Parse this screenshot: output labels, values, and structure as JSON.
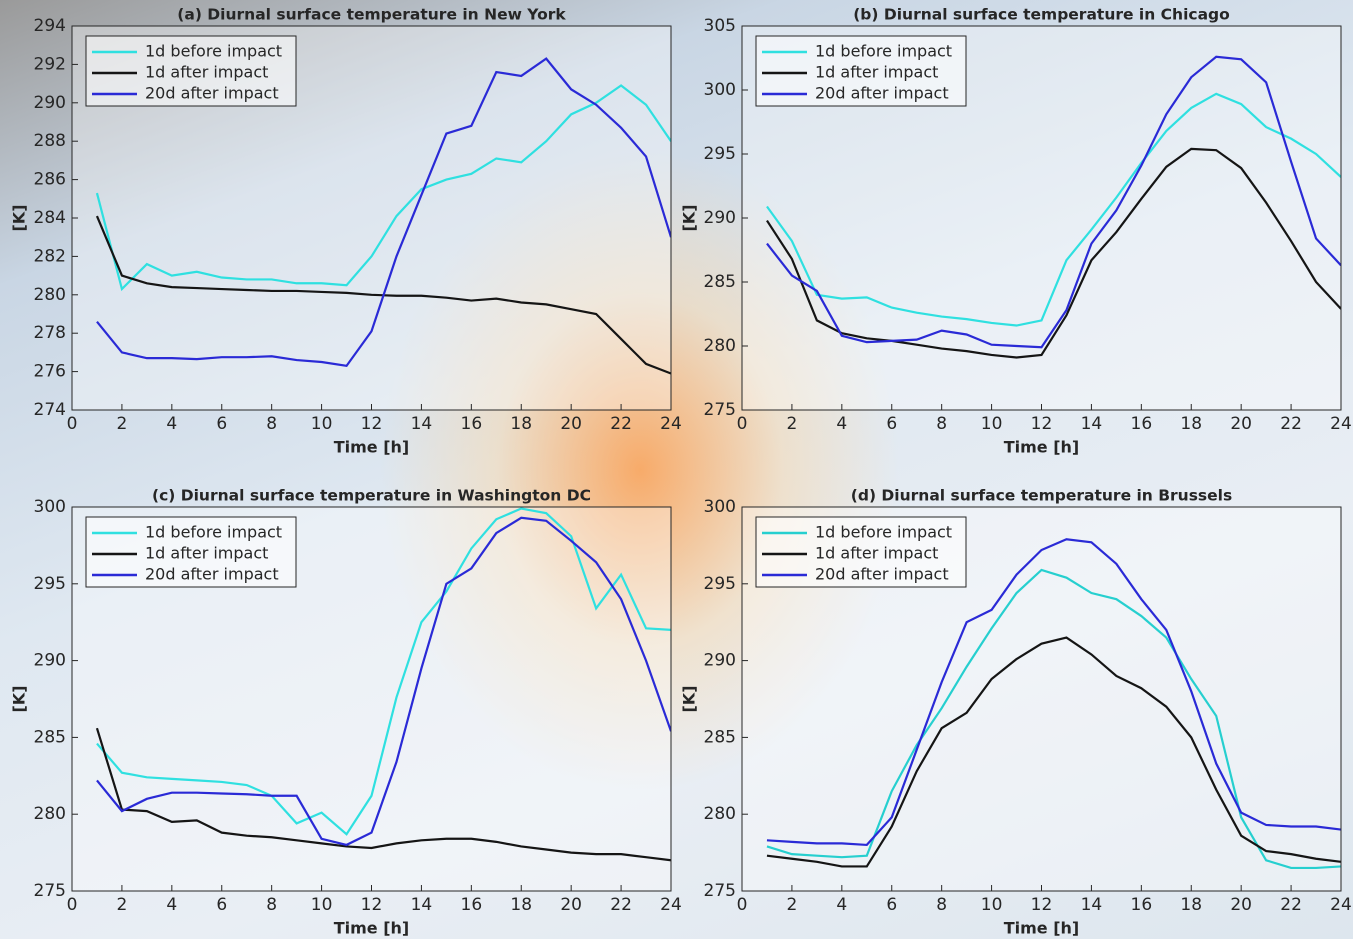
{
  "chart_data": [
    {
      "type": "line",
      "title": "(a) Diurnal surface temperature in New York",
      "xlabel": "Time [h]",
      "ylabel": "[K]",
      "x": [
        1,
        2,
        3,
        4,
        5,
        6,
        7,
        8,
        9,
        10,
        11,
        12,
        13,
        14,
        15,
        16,
        17,
        18,
        19,
        20,
        21,
        22,
        23,
        24
      ],
      "xlim": [
        0,
        24
      ],
      "xticks": [
        0,
        2,
        4,
        6,
        8,
        10,
        12,
        14,
        16,
        18,
        20,
        22,
        24
      ],
      "ylim": [
        274,
        294
      ],
      "yticks": [
        274,
        276,
        278,
        280,
        282,
        284,
        286,
        288,
        290,
        292,
        294
      ],
      "legend": "upper left",
      "series": [
        {
          "name": "1d before impact",
          "color": "#2fe0e0",
          "values": [
            285.3,
            280.3,
            281.6,
            281.0,
            281.2,
            280.9,
            280.8,
            280.8,
            280.6,
            280.6,
            280.5,
            282.0,
            284.1,
            285.5,
            286.0,
            286.3,
            287.1,
            286.9,
            288.0,
            289.4,
            290.0,
            290.9,
            289.9,
            288.0
          ]
        },
        {
          "name": "1d after impact",
          "color": "#151515",
          "values": [
            284.1,
            281.0,
            280.6,
            280.4,
            280.35,
            280.3,
            280.25,
            280.2,
            280.2,
            280.15,
            280.1,
            280.0,
            279.95,
            279.95,
            279.85,
            279.7,
            279.8,
            279.6,
            279.5,
            279.25,
            279.0,
            277.7,
            276.4,
            275.9
          ]
        },
        {
          "name": "20d after impact",
          "color": "#2a2ad6",
          "values": [
            278.6,
            277.0,
            276.7,
            276.7,
            276.65,
            276.75,
            276.75,
            276.8,
            276.6,
            276.5,
            276.3,
            278.1,
            282.0,
            285.2,
            288.4,
            288.8,
            291.6,
            291.4,
            292.3,
            290.7,
            289.9,
            288.7,
            287.2,
            283.0
          ]
        }
      ]
    },
    {
      "type": "line",
      "title": "(b) Diurnal surface temperature in Chicago",
      "xlabel": "Time [h]",
      "ylabel": "[K]",
      "x": [
        1,
        2,
        3,
        4,
        5,
        6,
        7,
        8,
        9,
        10,
        11,
        12,
        13,
        14,
        15,
        16,
        17,
        18,
        19,
        20,
        21,
        22,
        23,
        24
      ],
      "xlim": [
        0,
        24
      ],
      "xticks": [
        0,
        2,
        4,
        6,
        8,
        10,
        12,
        14,
        16,
        18,
        20,
        22,
        24
      ],
      "ylim": [
        275,
        305
      ],
      "yticks": [
        275,
        280,
        285,
        290,
        295,
        300,
        305
      ],
      "legend": "upper left",
      "series": [
        {
          "name": "1d before impact",
          "color": "#2fe0e0",
          "values": [
            290.9,
            288.2,
            284.0,
            283.7,
            283.8,
            283.0,
            282.6,
            282.3,
            282.1,
            281.8,
            281.6,
            282.0,
            286.7,
            289.1,
            291.6,
            294.3,
            296.8,
            298.6,
            299.7,
            298.9,
            297.1,
            296.2,
            295.0,
            293.2
          ]
        },
        {
          "name": "1d after impact",
          "color": "#151515",
          "values": [
            289.8,
            286.8,
            282.0,
            281.0,
            280.6,
            280.4,
            280.1,
            279.8,
            279.6,
            279.3,
            279.1,
            279.3,
            282.4,
            286.7,
            288.9,
            291.5,
            294.0,
            295.4,
            295.3,
            293.9,
            291.2,
            288.2,
            285.0,
            282.9
          ]
        },
        {
          "name": "20d after impact",
          "color": "#2a2ad6",
          "values": [
            288.0,
            285.5,
            284.3,
            280.8,
            280.3,
            280.4,
            280.5,
            281.2,
            280.9,
            280.1,
            280.0,
            279.9,
            282.8,
            288.0,
            290.6,
            294.1,
            298.1,
            301.0,
            302.6,
            302.4,
            300.6,
            294.4,
            288.4,
            286.3
          ]
        }
      ]
    },
    {
      "type": "line",
      "title": "(c) Diurnal surface temperature in Washington DC",
      "xlabel": "Time [h]",
      "ylabel": "[K]",
      "x": [
        1,
        2,
        3,
        4,
        5,
        6,
        7,
        8,
        9,
        10,
        11,
        12,
        13,
        14,
        15,
        16,
        17,
        18,
        19,
        20,
        21,
        22,
        23,
        24
      ],
      "xlim": [
        0,
        24
      ],
      "xticks": [
        0,
        2,
        4,
        6,
        8,
        10,
        12,
        14,
        16,
        18,
        20,
        22,
        24
      ],
      "ylim": [
        275,
        300
      ],
      "yticks": [
        275,
        280,
        285,
        290,
        295,
        300
      ],
      "legend": "upper left",
      "series": [
        {
          "name": "1d before impact",
          "color": "#2fe0e0",
          "values": [
            284.6,
            282.7,
            282.4,
            282.3,
            282.2,
            282.1,
            281.9,
            281.2,
            279.4,
            280.1,
            278.7,
            281.2,
            287.6,
            292.5,
            294.5,
            297.3,
            299.2,
            299.9,
            299.6,
            298.1,
            293.4,
            295.6,
            292.1,
            292.0
          ]
        },
        {
          "name": "1d after impact",
          "color": "#151515",
          "values": [
            285.6,
            280.3,
            280.2,
            279.5,
            279.6,
            278.8,
            278.6,
            278.5,
            278.3,
            278.1,
            277.9,
            277.8,
            278.1,
            278.3,
            278.4,
            278.4,
            278.2,
            277.9,
            277.7,
            277.5,
            277.4,
            277.4,
            277.2,
            277.0
          ]
        },
        {
          "name": "20d after impact",
          "color": "#2a2ad6",
          "values": [
            282.2,
            280.2,
            281.0,
            281.4,
            281.4,
            281.35,
            281.3,
            281.2,
            281.2,
            278.4,
            278.0,
            278.8,
            283.4,
            289.5,
            295.0,
            296.0,
            298.3,
            299.3,
            299.1,
            297.8,
            296.4,
            294.0,
            290.0,
            285.4
          ]
        }
      ]
    },
    {
      "type": "line",
      "title": "(d) Diurnal surface temperature in Brussels",
      "xlabel": "Time [h]",
      "ylabel": "[K]",
      "x": [
        1,
        2,
        3,
        4,
        5,
        6,
        7,
        8,
        9,
        10,
        11,
        12,
        13,
        14,
        15,
        16,
        17,
        18,
        19,
        20,
        21,
        22,
        23,
        24
      ],
      "xlim": [
        0,
        24
      ],
      "xticks": [
        0,
        2,
        4,
        6,
        8,
        10,
        12,
        14,
        16,
        18,
        20,
        22,
        24
      ],
      "ylim": [
        275,
        300
      ],
      "yticks": [
        275,
        280,
        285,
        290,
        295,
        300
      ],
      "legend": "upper left",
      "series": [
        {
          "name": "1d before impact",
          "color": "#26cfcf",
          "values": [
            277.9,
            277.4,
            277.3,
            277.2,
            277.3,
            281.5,
            284.5,
            286.9,
            289.6,
            292.1,
            294.4,
            295.9,
            295.4,
            294.4,
            294.0,
            292.9,
            291.5,
            288.8,
            286.4,
            279.8,
            277.0,
            276.5,
            276.5,
            276.6
          ]
        },
        {
          "name": "1d after impact",
          "color": "#151515",
          "values": [
            277.3,
            277.1,
            276.9,
            276.6,
            276.6,
            279.2,
            282.8,
            285.6,
            286.6,
            288.8,
            290.1,
            291.1,
            291.5,
            290.4,
            289.0,
            288.2,
            287.0,
            285.0,
            281.6,
            278.6,
            277.6,
            277.4,
            277.1,
            276.9
          ]
        },
        {
          "name": "20d after impact",
          "color": "#2a2ad6",
          "values": [
            278.3,
            278.2,
            278.1,
            278.1,
            278.0,
            279.8,
            284.2,
            288.6,
            292.5,
            293.3,
            295.6,
            297.2,
            297.9,
            297.7,
            296.3,
            294.0,
            292.0,
            288.0,
            283.3,
            280.1,
            279.3,
            279.2,
            279.2,
            279.0
          ]
        }
      ]
    }
  ]
}
